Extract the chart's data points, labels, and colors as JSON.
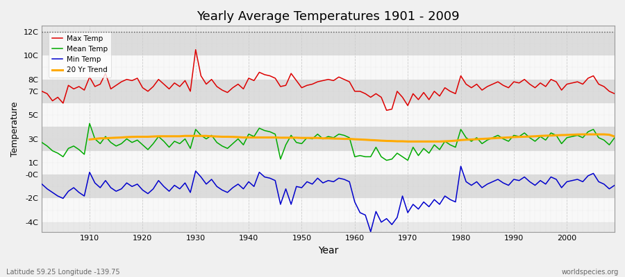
{
  "title": "Yearly Average Temperatures 1901 - 2009",
  "xlabel": "Year",
  "ylabel": "Temperature",
  "subtitle_left": "Latitude 59.25 Longitude -139.75",
  "subtitle_right": "worldspecies.org",
  "years": [
    1901,
    1902,
    1903,
    1904,
    1905,
    1906,
    1907,
    1908,
    1909,
    1910,
    1911,
    1912,
    1913,
    1914,
    1915,
    1916,
    1917,
    1918,
    1919,
    1920,
    1921,
    1922,
    1923,
    1924,
    1925,
    1926,
    1927,
    1928,
    1929,
    1930,
    1931,
    1932,
    1933,
    1934,
    1935,
    1936,
    1937,
    1938,
    1939,
    1940,
    1941,
    1942,
    1943,
    1944,
    1945,
    1946,
    1947,
    1948,
    1949,
    1950,
    1951,
    1952,
    1953,
    1954,
    1955,
    1956,
    1957,
    1958,
    1959,
    1960,
    1961,
    1962,
    1963,
    1964,
    1965,
    1966,
    1967,
    1968,
    1969,
    1970,
    1971,
    1972,
    1973,
    1974,
    1975,
    1976,
    1977,
    1978,
    1979,
    1980,
    1981,
    1982,
    1983,
    1984,
    1985,
    1986,
    1987,
    1988,
    1989,
    1990,
    1991,
    1992,
    1993,
    1994,
    1995,
    1996,
    1997,
    1998,
    1999,
    2000,
    2001,
    2002,
    2003,
    2004,
    2005,
    2006,
    2007,
    2008,
    2009
  ],
  "max_temp": [
    7.0,
    6.8,
    6.2,
    6.5,
    6.0,
    7.5,
    7.2,
    7.4,
    7.1,
    8.2,
    7.4,
    7.6,
    8.5,
    7.2,
    7.5,
    7.8,
    8.0,
    7.9,
    8.1,
    7.3,
    7.0,
    7.4,
    8.0,
    7.6,
    7.2,
    7.7,
    7.4,
    7.9,
    7.0,
    10.5,
    8.3,
    7.6,
    8.0,
    7.4,
    7.1,
    6.9,
    7.3,
    7.6,
    7.2,
    8.1,
    7.9,
    8.6,
    8.4,
    8.3,
    8.1,
    7.4,
    7.5,
    8.5,
    7.9,
    7.3,
    7.5,
    7.6,
    7.8,
    7.9,
    8.0,
    7.9,
    8.2,
    8.0,
    7.8,
    7.0,
    7.0,
    6.8,
    6.5,
    6.8,
    6.5,
    5.4,
    5.5,
    7.0,
    6.5,
    5.8,
    6.8,
    6.3,
    6.9,
    6.3,
    7.0,
    6.6,
    7.3,
    7.0,
    6.8,
    8.3,
    7.6,
    7.3,
    7.6,
    7.1,
    7.4,
    7.6,
    7.8,
    7.5,
    7.3,
    7.8,
    7.7,
    8.0,
    7.6,
    7.3,
    7.7,
    7.4,
    8.0,
    7.8,
    7.1,
    7.6,
    7.7,
    7.8,
    7.6,
    8.1,
    8.3,
    7.6,
    7.4,
    7.0,
    6.8
  ],
  "mean_temp": [
    2.7,
    2.4,
    2.0,
    1.8,
    1.5,
    2.2,
    2.4,
    2.1,
    1.7,
    4.3,
    3.0,
    2.6,
    3.2,
    2.7,
    2.4,
    2.6,
    3.0,
    2.7,
    2.9,
    2.5,
    2.1,
    2.6,
    3.2,
    2.8,
    2.3,
    2.8,
    2.6,
    3.0,
    2.2,
    3.8,
    3.3,
    3.0,
    3.3,
    2.7,
    2.4,
    2.2,
    2.6,
    3.0,
    2.5,
    3.4,
    3.2,
    3.9,
    3.7,
    3.6,
    3.4,
    1.3,
    2.5,
    3.3,
    2.7,
    2.6,
    3.1,
    3.0,
    3.4,
    3.0,
    3.2,
    3.1,
    3.4,
    3.3,
    3.1,
    1.5,
    1.6,
    1.5,
    1.5,
    2.3,
    1.5,
    1.2,
    1.3,
    1.8,
    1.5,
    1.2,
    2.3,
    1.6,
    2.2,
    1.8,
    2.5,
    2.1,
    2.8,
    2.5,
    2.3,
    3.8,
    3.1,
    2.8,
    3.1,
    2.6,
    2.9,
    3.1,
    3.3,
    3.0,
    2.8,
    3.3,
    3.2,
    3.5,
    3.1,
    2.8,
    3.2,
    2.9,
    3.5,
    3.3,
    2.6,
    3.1,
    3.2,
    3.3,
    3.1,
    3.6,
    3.8,
    3.1,
    2.9,
    2.5,
    3.1
  ],
  "min_temp": [
    -0.8,
    -1.2,
    -1.5,
    -1.8,
    -2.0,
    -1.4,
    -1.1,
    -1.5,
    -1.8,
    0.2,
    -0.7,
    -1.1,
    -0.5,
    -1.1,
    -1.4,
    -1.2,
    -0.7,
    -1.0,
    -0.8,
    -1.3,
    -1.6,
    -1.2,
    -0.5,
    -1.0,
    -1.4,
    -0.9,
    -1.2,
    -0.7,
    -1.5,
    0.3,
    -0.2,
    -0.8,
    -0.4,
    -1.0,
    -1.3,
    -1.5,
    -1.1,
    -0.8,
    -1.2,
    -0.6,
    -1.0,
    0.2,
    -0.2,
    -0.3,
    -0.5,
    -2.5,
    -1.2,
    -2.5,
    -1.0,
    -1.1,
    -0.6,
    -0.8,
    -0.3,
    -0.7,
    -0.5,
    -0.6,
    -0.3,
    -0.4,
    -0.6,
    -2.3,
    -3.2,
    -3.4,
    -4.8,
    -3.1,
    -4.0,
    -3.7,
    -4.2,
    -3.6,
    -1.8,
    -3.2,
    -2.5,
    -2.9,
    -2.3,
    -2.7,
    -2.1,
    -2.5,
    -1.8,
    -2.1,
    -2.3,
    0.7,
    -0.6,
    -0.9,
    -0.6,
    -1.1,
    -0.8,
    -0.6,
    -0.4,
    -0.7,
    -0.9,
    -0.4,
    -0.5,
    -0.2,
    -0.6,
    -0.9,
    -0.5,
    -0.8,
    -0.2,
    -0.4,
    -1.1,
    -0.6,
    -0.5,
    -0.4,
    -0.6,
    -0.1,
    0.1,
    -0.6,
    -0.8,
    -1.2,
    -0.9
  ],
  "trend_years": [
    1910,
    1911,
    1912,
    1913,
    1914,
    1915,
    1916,
    1917,
    1918,
    1919,
    1920,
    1921,
    1922,
    1923,
    1924,
    1925,
    1926,
    1927,
    1928,
    1929,
    1930,
    1931,
    1932,
    1933,
    1934,
    1935,
    1936,
    1937,
    1938,
    1939,
    1940,
    1941,
    1942,
    1943,
    1944,
    1945,
    1946,
    1947,
    1948,
    1949,
    1950,
    1951,
    1952,
    1953,
    1954,
    1955,
    1956,
    1957,
    1958,
    1959,
    1960,
    1961,
    1962,
    1963,
    1964,
    1965,
    1966,
    1967,
    1968,
    1969,
    1970,
    1971,
    1972,
    1973,
    1974,
    1975,
    1976,
    1977,
    1978,
    1979,
    1980,
    1981,
    1982,
    1983,
    1984,
    1985,
    1986,
    1987,
    1988,
    1989,
    1990,
    1991,
    1992,
    1993,
    1994,
    1995,
    1996,
    1997,
    1998,
    1999,
    2000,
    2001,
    2002,
    2003,
    2004,
    2005,
    2006,
    2007,
    2008,
    2009
  ],
  "trend_temp": [
    2.95,
    3.0,
    3.05,
    3.05,
    3.08,
    3.1,
    3.12,
    3.15,
    3.17,
    3.18,
    3.18,
    3.18,
    3.2,
    3.22,
    3.22,
    3.22,
    3.22,
    3.22,
    3.25,
    3.25,
    3.25,
    3.25,
    3.25,
    3.22,
    3.2,
    3.18,
    3.18,
    3.17,
    3.15,
    3.12,
    3.12,
    3.12,
    3.12,
    3.12,
    3.12,
    3.12,
    3.1,
    3.1,
    3.1,
    3.1,
    3.08,
    3.08,
    3.08,
    3.08,
    3.05,
    3.05,
    3.03,
    3.02,
    3.0,
    3.0,
    2.97,
    2.95,
    2.93,
    2.9,
    2.88,
    2.85,
    2.83,
    2.82,
    2.8,
    2.8,
    2.78,
    2.78,
    2.78,
    2.78,
    2.78,
    2.78,
    2.78,
    2.8,
    2.82,
    2.85,
    2.9,
    2.93,
    2.95,
    2.97,
    3.0,
    3.02,
    3.05,
    3.08,
    3.1,
    3.12,
    3.15,
    3.17,
    3.18,
    3.2,
    3.22,
    3.25,
    3.27,
    3.28,
    3.3,
    3.32,
    3.33,
    3.35,
    3.37,
    3.38,
    3.38,
    3.38,
    3.38,
    3.38,
    3.35,
    3.2
  ],
  "max_color": "#dd0000",
  "mean_color": "#00aa00",
  "min_color": "#0000cc",
  "trend_color": "#ffaa00",
  "fig_bg": "#f0f0f0",
  "plot_bg": "#e8e8e8",
  "band_light": "#f8f8f8",
  "band_dark": "#dcdcdc",
  "vgrid_color": "#cccccc",
  "ylim": [
    -4.8,
    12.5
  ],
  "band_edges": [
    -4,
    -2,
    0,
    2,
    4,
    6,
    8,
    10,
    12
  ],
  "ytick_vals": [
    -4,
    -2,
    0,
    1,
    3,
    5,
    7,
    8,
    10,
    12
  ],
  "ytick_labels": [
    "-4C",
    "-2C",
    "-0C",
    "1C",
    "3C",
    "5C",
    "7C",
    "8C",
    "10C",
    "12C"
  ],
  "xlim": [
    1901,
    2009
  ],
  "xticks": [
    1910,
    1920,
    1930,
    1940,
    1950,
    1960,
    1970,
    1980,
    1990,
    2000
  ],
  "line_width": 1.1
}
